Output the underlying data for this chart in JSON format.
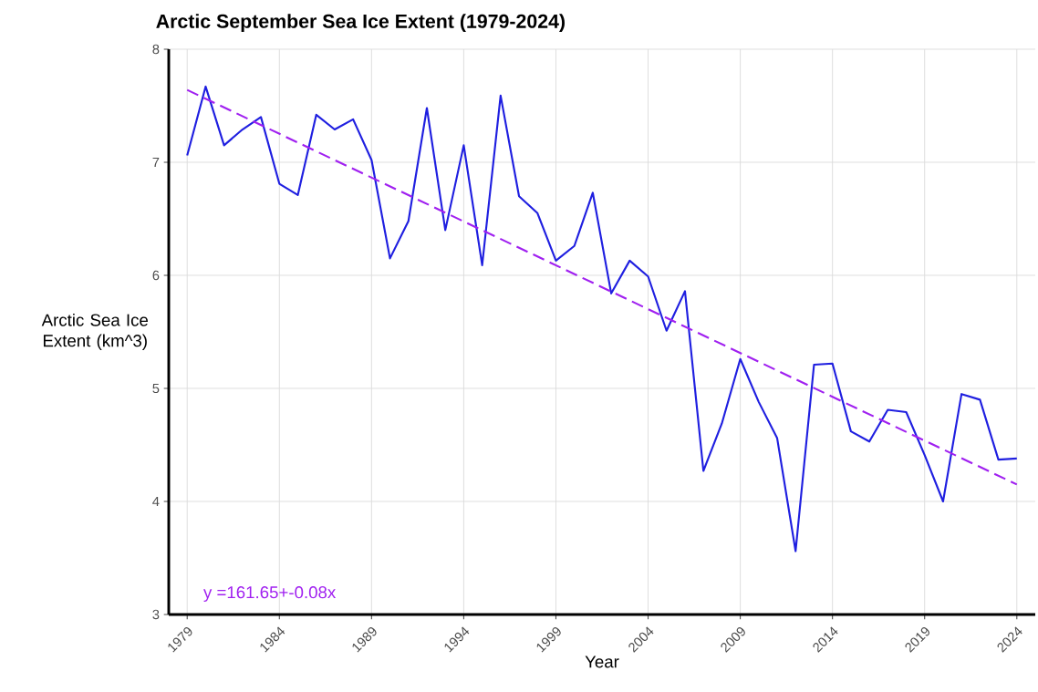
{
  "chart_data": {
    "type": "line",
    "title": "Arctic September Sea Ice Extent (1979-2024)",
    "xlabel": "Year",
    "ylabel": "Arctic Sea Ice Extent (km^3)",
    "annotations": [
      "y =161.65+-0.08x"
    ],
    "x": [
      1979,
      1980,
      1981,
      1982,
      1983,
      1984,
      1985,
      1986,
      1987,
      1988,
      1989,
      1990,
      1991,
      1992,
      1993,
      1994,
      1995,
      1996,
      1997,
      1998,
      1999,
      2000,
      2001,
      2002,
      2003,
      2004,
      2005,
      2006,
      2007,
      2008,
      2009,
      2010,
      2011,
      2012,
      2013,
      2014,
      2015,
      2016,
      2017,
      2018,
      2019,
      2020,
      2021,
      2022,
      2023,
      2024
    ],
    "series": [
      {
        "color": "#1f1fe0",
        "line_style": "solid",
        "values": [
          7.06,
          7.67,
          7.15,
          7.29,
          7.4,
          6.81,
          6.71,
          7.42,
          7.29,
          7.38,
          7.02,
          6.15,
          6.48,
          7.48,
          6.4,
          7.15,
          6.09,
          7.59,
          6.7,
          6.55,
          6.13,
          6.26,
          6.73,
          5.84,
          6.13,
          5.99,
          5.51,
          5.86,
          4.27,
          4.69,
          5.26,
          4.88,
          4.56,
          3.56,
          5.21,
          5.22,
          4.62,
          4.53,
          4.81,
          4.79,
          4.41,
          4.0,
          4.95,
          4.9,
          4.37,
          4.38
        ]
      },
      {
        "type": "line",
        "x": [
          1979,
          2024
        ],
        "values": [
          7.64,
          4.15
        ],
        "color": "#a020f0",
        "line_style": "dashed"
      }
    ],
    "xlim": [
      1978,
      2025
    ],
    "ylim": [
      3,
      8
    ],
    "xticks": [
      1979,
      1984,
      1989,
      1994,
      1999,
      2004,
      2009,
      2014,
      2019,
      2024
    ],
    "yticks": [
      3,
      4,
      5,
      6,
      7,
      8
    ],
    "grid": true
  }
}
